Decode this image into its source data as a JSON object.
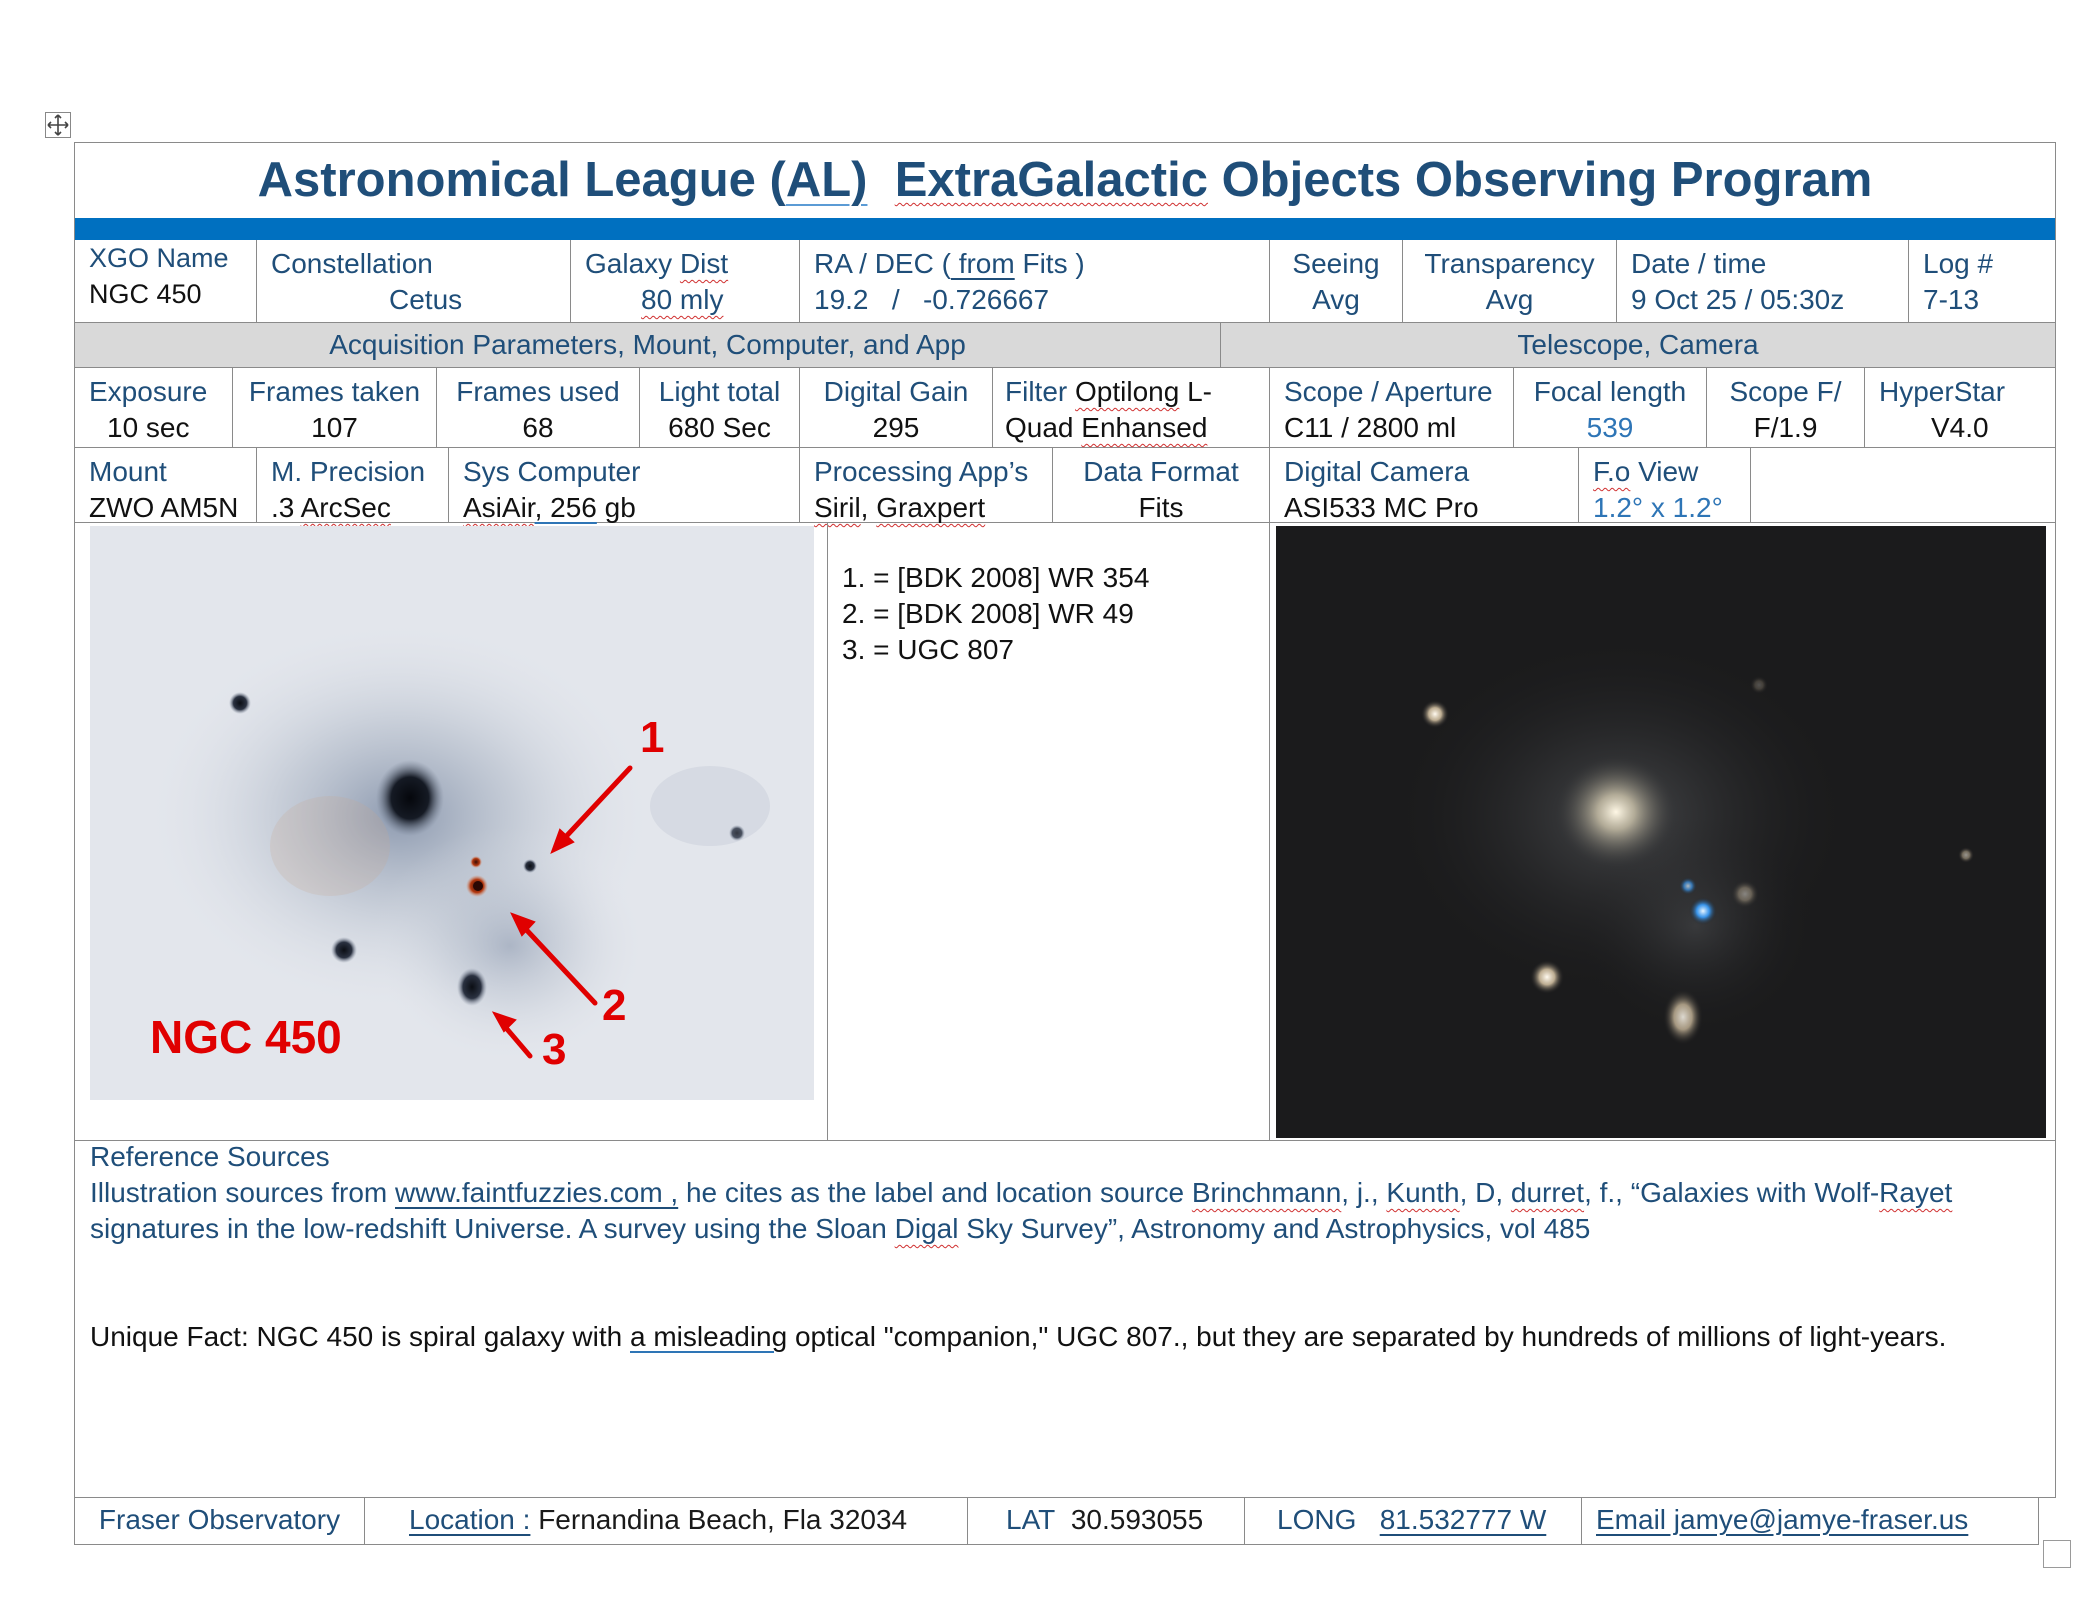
{
  "header": {
    "title_part1": "Astronomical League (",
    "title_al": "AL)",
    "title_part2": "ExtraGalactic",
    "title_part3": " Objects Observing Program"
  },
  "row1": {
    "xgo_label": "XGO Name",
    "xgo_value": "NGC 450",
    "constellation_label": "Constellation",
    "constellation_value": "Cetus",
    "dist_label": "Galaxy Dist",
    "dist_value": "80 mly",
    "radec_label_a": "RA / DEC (",
    "radec_label_b": " from",
    "radec_label_c": " Fits )",
    "ra_value": "19.2",
    "radec_sep": "/",
    "dec_value": "-0.726667",
    "seeing_label": "Seeing",
    "seeing_value": "Avg",
    "transparency_label": "Transparency",
    "transparency_value": "Avg",
    "date_label": "Date / time",
    "date_value": "9 Oct 25 / 05:30z",
    "log_label": "Log #",
    "log_value": "7-13"
  },
  "sections": {
    "acquisition": "Acquisition Parameters, Mount, Computer, and App",
    "telescope": "Telescope, Camera"
  },
  "row2": {
    "exposure_label": "Exposure",
    "exposure_value": "10   sec",
    "frames_taken_label": "Frames taken",
    "frames_taken_value": "107",
    "frames_used_label": "Frames used",
    "frames_used_value": "68",
    "light_total_label": "Light total",
    "light_total_value": "680 Sec",
    "gain_label": "Digital Gain",
    "gain_value": "295",
    "filter_label": "Filter",
    "filter_value_a": "Optilong",
    "filter_value_b": " L-",
    "filter_value_c": "Quad ",
    "filter_value_d": "Enhansed",
    "scope_label": "Scope / Aperture",
    "scope_value": "C11 / 2800 ml",
    "focal_label": "Focal length",
    "focal_value": "539",
    "scopef_label": "Scope F/",
    "scopef_value": "F/1.9",
    "hyperstar_label": "HyperStar",
    "hyperstar_value": "V4.0"
  },
  "row3": {
    "mount_label": "Mount",
    "mount_value": "ZWO AM5N",
    "precision_label": "M. Precision",
    "precision_value_a": ".3 ",
    "precision_value_b": "ArcSec",
    "sys_label": "Sys Computer",
    "sys_value_a": "AsiAir",
    "sys_value_b": ", 256",
    "sys_value_c": " gb",
    "proc_label": "Processing App’s",
    "proc_value_a": "Siril",
    "proc_value_b": ", ",
    "proc_value_c": "Graxpert",
    "format_label": "Data Format",
    "format_value": "Fits",
    "camera_label": "Digital Camera",
    "camera_value": "ASI533 MC Pro",
    "fov_label_a": "F.o",
    "fov_label_b": " View",
    "fov_value": "1.2° x 1.2°"
  },
  "image_left": {
    "caption": "NGC 450",
    "markers": [
      "1",
      "2",
      "3"
    ]
  },
  "labels_list": [
    "1. = [BDK 2008] WR 354",
    "2. = [BDK 2008] WR 49",
    "3. = UGC 807"
  ],
  "reference": {
    "heading": "Reference Sources",
    "line1_a": "Illustration sources from ",
    "line1_link": "www.faintfuzzies.com ,",
    "line1_b": " he cites as the label and location source ",
    "line1_c": "Brinchmann",
    "line1_d": ", j., ",
    "line1_e": "Kunth",
    "line1_f": ", D, ",
    "line1_g": "durret",
    "line1_h": ", f., “Galaxies with Wolf-",
    "line1_i": "Rayet",
    "line2_a": "signatures in the low-redshift Universe. A survey using the Sloan ",
    "line2_b": "Digal",
    "line2_c": " Sky Survey”, Astronomy and Astrophysics, vol 485",
    "fact_a": "Unique Fact: NGC 450 is spiral galaxy with ",
    "fact_b": "a  misleading",
    "fact_c": " optical \"companion,\" UGC 807., but they are separated by hundreds of millions of light-years."
  },
  "footer": {
    "observatory": "Fraser Observatory",
    "location_label": "Location :",
    "location_value": "  Fernandina Beach, Fla 32034",
    "lat_label": "LAT",
    "lat_value": "30.593055",
    "long_label": "LONG",
    "long_value": "81.532777  W",
    "email": "Email  jamye@jamye-fraser.us"
  },
  "colors": {
    "title": "#1f4e79",
    "band": "#0070c0",
    "section_bg": "#d9d9d9",
    "annotation_red": "#e00000"
  }
}
